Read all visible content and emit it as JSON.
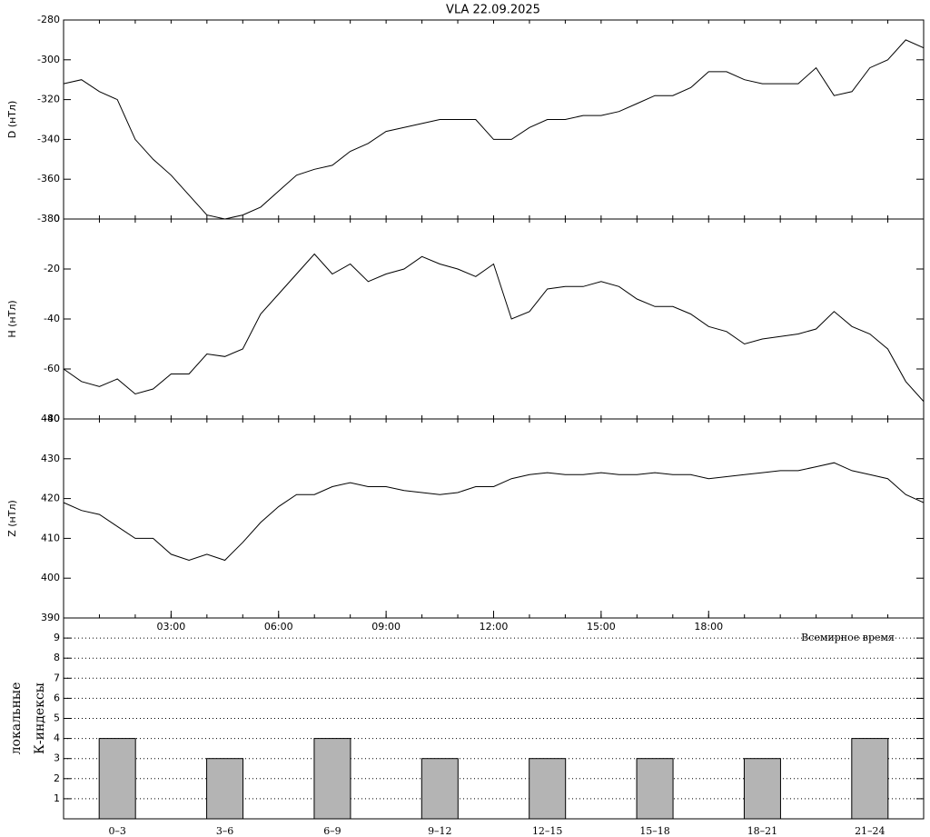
{
  "chart_data": [
    {
      "type": "line",
      "title": "VLA   22.09.2025",
      "ylabel": "D (нТл)",
      "x": [
        0,
        0.5,
        1,
        1.5,
        2,
        2.5,
        3,
        3.5,
        4,
        4.5,
        5,
        5.5,
        6,
        6.5,
        7,
        7.5,
        8,
        8.5,
        9,
        9.5,
        10,
        10.5,
        11,
        11.5,
        12,
        12.5,
        13,
        13.5,
        14,
        14.5,
        15,
        15.5,
        16,
        16.5,
        17,
        17.5,
        18,
        18.5,
        19,
        19.5,
        20,
        20.5,
        21,
        21.5,
        22,
        22.5,
        23,
        23.5,
        24
      ],
      "series": [
        {
          "color": "#000000",
          "values": [
            -312,
            -310,
            -316,
            -320,
            -340,
            -350,
            -358,
            -368,
            -378,
            -380,
            -378,
            -374,
            -366,
            -358,
            -355,
            -353,
            -346,
            -342,
            -336,
            -334,
            -332,
            -330,
            -330,
            -330,
            -340,
            -340,
            -334,
            -330,
            -330,
            -328,
            -328,
            -326,
            -322,
            -318,
            -318,
            -314,
            -306,
            -306,
            -310,
            -312,
            -312,
            -312,
            -304,
            -318,
            -316,
            -304,
            -300,
            -290,
            -294
          ]
        }
      ],
      "xlim": [
        0,
        24
      ],
      "ylim": [
        -380,
        -280
      ],
      "yticks": [
        -380,
        -360,
        -340,
        -320,
        -300,
        -280
      ]
    },
    {
      "type": "line",
      "ylabel": "H (нТл)",
      "x": [
        0,
        0.5,
        1,
        1.5,
        2,
        2.5,
        3,
        3.5,
        4,
        4.5,
        5,
        5.5,
        6,
        6.5,
        7,
        7.5,
        8,
        8.5,
        9,
        9.5,
        10,
        10.5,
        11,
        11.5,
        12,
        12.5,
        13,
        13.5,
        14,
        14.5,
        15,
        15.5,
        16,
        16.5,
        17,
        17.5,
        18,
        18.5,
        19,
        19.5,
        20,
        20.5,
        21,
        21.5,
        22,
        22.5,
        23,
        23.5,
        24
      ],
      "series": [
        {
          "color": "#000000",
          "values": [
            -60,
            -65,
            -67,
            -64,
            -70,
            -68,
            -62,
            -62,
            -54,
            -55,
            -52,
            -38,
            -30,
            -22,
            -14,
            -22,
            -18,
            -25,
            -22,
            -20,
            -15,
            -18,
            -20,
            -23,
            -18,
            -40,
            -37,
            -28,
            -27,
            -27,
            -25,
            -27,
            -32,
            -35,
            -35,
            -38,
            -43,
            -45,
            -50,
            -48,
            -47,
            -46,
            -44,
            -37,
            -43,
            -46,
            -52,
            -65,
            -73
          ]
        }
      ],
      "xlim": [
        0,
        24
      ],
      "ylim": [
        -80,
        0
      ],
      "yticks": [
        -80,
        -60,
        -40,
        -20,
        0
      ]
    },
    {
      "type": "line",
      "ylabel": "Z (нТл)",
      "xlabel": "Всемирное время",
      "x": [
        0,
        0.5,
        1,
        1.5,
        2,
        2.5,
        3,
        3.5,
        4,
        4.5,
        5,
        5.5,
        6,
        6.5,
        7,
        7.5,
        8,
        8.5,
        9,
        9.5,
        10,
        10.5,
        11,
        11.5,
        12,
        12.5,
        13,
        13.5,
        14,
        14.5,
        15,
        15.5,
        16,
        16.5,
        17,
        17.5,
        18,
        18.5,
        19,
        19.5,
        20,
        20.5,
        21,
        21.5,
        22,
        22.5,
        23,
        23.5,
        24
      ],
      "series": [
        {
          "color": "#000000",
          "values": [
            419,
            417,
            416,
            413,
            410,
            410,
            406,
            404.5,
            406,
            404.5,
            409,
            414,
            418,
            421,
            421,
            423,
            424,
            423,
            423,
            422,
            421.5,
            421,
            421.5,
            423,
            423,
            425,
            426,
            426.5,
            426,
            426,
            426.5,
            426,
            426,
            426.5,
            426,
            426,
            425,
            425.5,
            426,
            426.5,
            427,
            427,
            428,
            429,
            427,
            426,
            425,
            421,
            419
          ]
        }
      ],
      "xlim": [
        0,
        24
      ],
      "ylim": [
        390,
        440
      ],
      "yticks": [
        390,
        400,
        410,
        420,
        430,
        440
      ],
      "xticks": [
        {
          "value": 3,
          "label": "03:00"
        },
        {
          "value": 6,
          "label": "06:00"
        },
        {
          "value": 9,
          "label": "09:00"
        },
        {
          "value": 12,
          "label": "12:00"
        },
        {
          "value": 15,
          "label": "15:00"
        },
        {
          "value": 18,
          "label": "18:00"
        }
      ]
    },
    {
      "type": "bar",
      "ylabel": [
        "локальные",
        "К-индексы"
      ],
      "categories": [
        "0–3",
        "3–6",
        "6–9",
        "9–12",
        "12–15",
        "15–18",
        "18–21",
        "21–24"
      ],
      "values": [
        4,
        3,
        4,
        3,
        3,
        3,
        3,
        4
      ],
      "color": "#b4b4b4",
      "ylim": [
        0,
        10
      ],
      "yticks": [
        1,
        2,
        3,
        4,
        5,
        6,
        7,
        8,
        9
      ],
      "grid": true
    }
  ]
}
